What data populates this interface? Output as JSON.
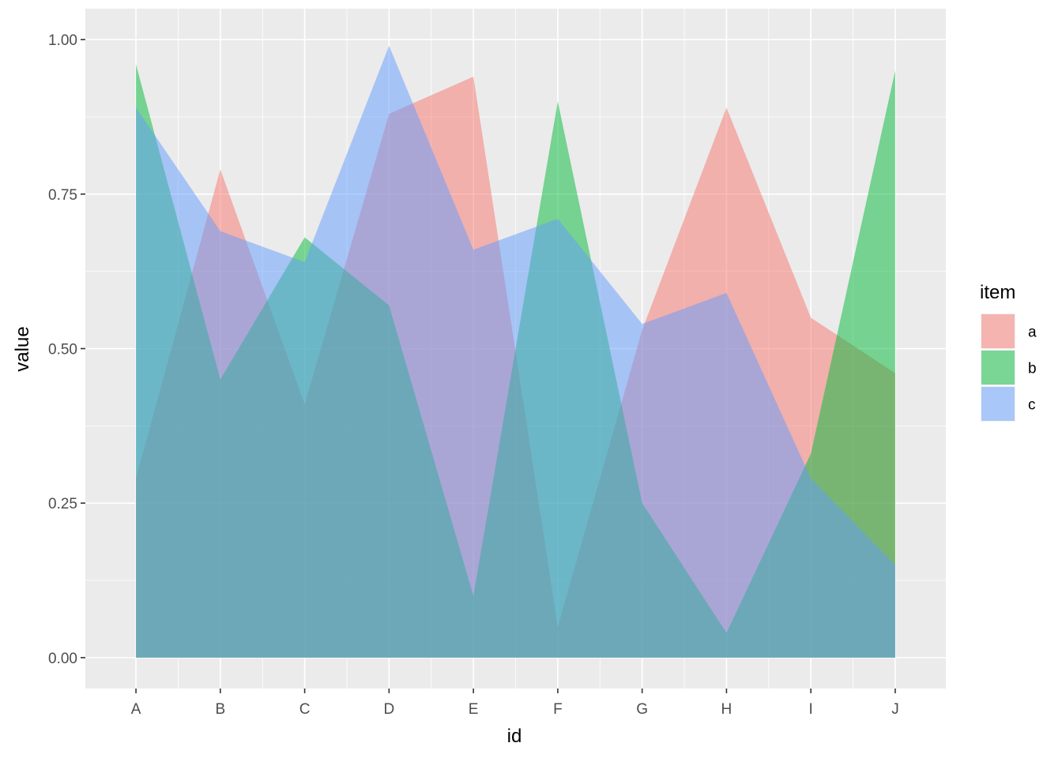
{
  "chart_data": {
    "type": "area",
    "categories": [
      "A",
      "B",
      "C",
      "D",
      "E",
      "F",
      "G",
      "H",
      "I",
      "J"
    ],
    "series": [
      {
        "name": "a",
        "color": "#F8766D",
        "values": [
          0.29,
          0.79,
          0.41,
          0.88,
          0.94,
          0.05,
          0.53,
          0.89,
          0.55,
          0.46
        ]
      },
      {
        "name": "b",
        "color": "#00BA38",
        "values": [
          0.96,
          0.45,
          0.68,
          0.57,
          0.1,
          0.9,
          0.25,
          0.04,
          0.33,
          0.95
        ]
      },
      {
        "name": "c",
        "color": "#619CFF",
        "values": [
          0.89,
          0.69,
          0.64,
          0.99,
          0.66,
          0.71,
          0.54,
          0.59,
          0.29,
          0.15
        ]
      }
    ],
    "fill_opacity": 0.5,
    "xlabel": "id",
    "ylabel": "value",
    "ylim": [
      -0.05,
      1.05
    ],
    "yticks": [
      0.0,
      0.25,
      0.5,
      0.75,
      1.0
    ],
    "ytick_labels": [
      "0.00",
      "0.25",
      "0.50",
      "0.75",
      "1.00"
    ],
    "grid": true,
    "legend": {
      "title": "item",
      "position": "right"
    },
    "panel_background": "#EBEBEB",
    "grid_color": "#FFFFFF"
  }
}
